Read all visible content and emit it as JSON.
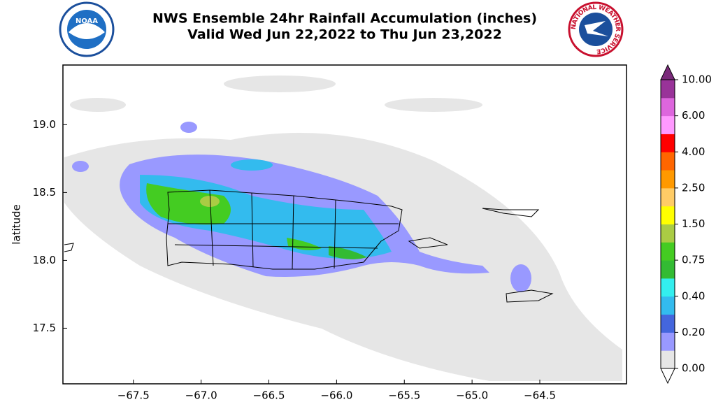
{
  "header": {
    "title": "NWS Ensemble 24hr Rainfall Accumulation (inches)",
    "subtitle": "Valid Wed Jun 22,2022 to Thu Jun 23,2022",
    "left_logo": "NOAA",
    "right_logo": "NATIONAL WEATHER SERVICE"
  },
  "map": {
    "y_label": "latitude",
    "xlim": [
      -68.02,
      -63.86
    ],
    "ylim": [
      17.09,
      19.44
    ],
    "xticks": [
      {
        "value": -67.5,
        "label": "−67.5"
      },
      {
        "value": -67.0,
        "label": "−67.0"
      },
      {
        "value": -66.5,
        "label": "−66.5"
      },
      {
        "value": -66.0,
        "label": "−66.0"
      },
      {
        "value": -65.5,
        "label": "−65.5"
      },
      {
        "value": -65.0,
        "label": "−65.0"
      },
      {
        "value": -64.5,
        "label": "−64.5"
      }
    ],
    "yticks": [
      {
        "value": 19.0,
        "label": "19.0"
      },
      {
        "value": 18.5,
        "label": "18.5"
      },
      {
        "value": 18.0,
        "label": "18.0"
      },
      17.5
    ]
  },
  "colorbar": {
    "ticks": [
      {
        "value": 0,
        "label": "0.00"
      },
      {
        "value": 0.2,
        "label": "0.20"
      },
      {
        "value": 0.4,
        "label": "0.40"
      },
      {
        "value": 0.75,
        "label": "0.75"
      },
      {
        "value": 1.5,
        "label": "1.50"
      },
      {
        "value": 2.5,
        "label": "2.50"
      },
      {
        "value": 4,
        "label": "4.00"
      },
      {
        "value": 6,
        "label": "6.00"
      },
      {
        "value": 10,
        "label": "10.00"
      }
    ],
    "colors": [
      "#e6e6e6",
      "#9999ff",
      "#4466dd",
      "#33bbee",
      "#33eeee",
      "#33bb33",
      "#44cc22",
      "#aacc44",
      "#ffff00",
      "#ffcc66",
      "#ff9900",
      "#ff6600",
      "#ff0000",
      "#ff99ff",
      "#dd66dd",
      "#993399"
    ],
    "under_color": "#ffffff",
    "over_color": "#7a2a7a"
  }
}
